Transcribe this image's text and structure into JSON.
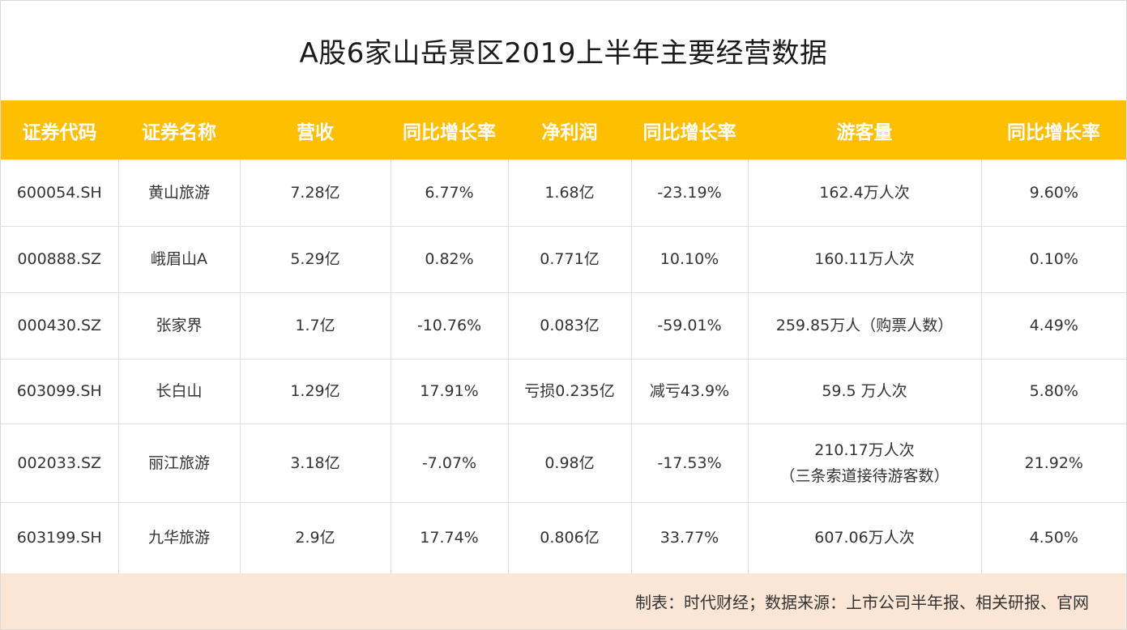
{
  "title": "A股6家山岳景区2019上半年主要经营数据",
  "colors": {
    "header_bg": "#fdbf00",
    "footer_bg": "#fbe6d5"
  },
  "table": {
    "headers": [
      "证券代码",
      "证券名称",
      "营收",
      "同比增长率",
      "净利润",
      "同比增长率",
      "游客量",
      "同比增长率"
    ],
    "rows": [
      [
        "600054.SH",
        "黄山旅游",
        "7.28亿",
        "6.77%",
        "1.68亿",
        "-23.19%",
        "162.4万人次",
        "9.60%"
      ],
      [
        "000888.SZ",
        "峨眉山A",
        "5.29亿",
        "0.82%",
        "0.771亿",
        "10.10%",
        "160.11万人次",
        "0.10%"
      ],
      [
        "000430.SZ",
        "张家界",
        "1.7亿",
        "-10.76%",
        "0.083亿",
        "-59.01%",
        "259.85万人（购票人数）",
        "4.49%"
      ],
      [
        "603099.SH",
        "长白山",
        "1.29亿",
        "17.91%",
        "亏损0.235亿",
        "减亏43.9%",
        "59.5 万人次",
        "5.80%"
      ],
      [
        "002033.SZ",
        "丽江旅游",
        "3.18亿",
        "-7.07%",
        "0.98亿",
        "-17.53%",
        "210.17万人次",
        "21.92%"
      ],
      [
        "603199.SH",
        "九华旅游",
        "2.9亿",
        "17.74%",
        "0.806亿",
        "33.77%",
        "607.06万人次",
        "4.50%"
      ]
    ],
    "notes": {
      "r4c6_sub": "（三条索道接待游客数）"
    }
  },
  "footer": "制表：时代财经；数据来源：上市公司半年报、相关研报、官网"
}
